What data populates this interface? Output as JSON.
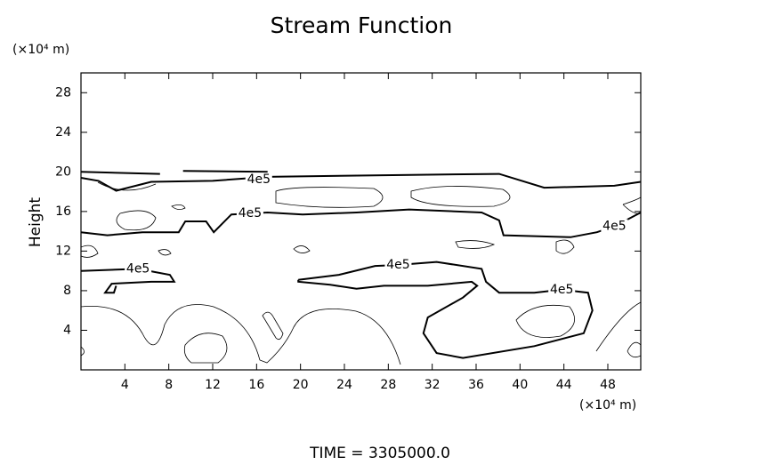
{
  "chart_data": {
    "type": "contour",
    "title": "Stream Function",
    "y_unit_label": "(×10⁴ m)",
    "y_label": "Height",
    "x_unit_label": "(×10⁴ m)",
    "time_label": "TIME = 3305000.0",
    "xlim": [
      0,
      51
    ],
    "xticks": [
      4,
      8,
      12,
      16,
      20,
      24,
      28,
      32,
      36,
      40,
      44,
      48
    ],
    "ylim": [
      0,
      30
    ],
    "yticks": [
      4,
      8,
      12,
      16,
      20,
      24,
      28
    ],
    "contours": [
      {
        "level": 400000,
        "label": "4e5",
        "color": "#000000",
        "labels_at": [
          [
            16.2,
            19.2
          ],
          [
            15.4,
            15.8
          ],
          [
            48.6,
            14.5
          ],
          [
            5.2,
            10.2
          ],
          [
            28.9,
            10.6
          ],
          [
            43.8,
            8.1
          ]
        ],
        "paths": [
          [
            [
              0,
              19.4
            ],
            [
              1.6,
              19.1
            ],
            [
              3.2,
              18.1
            ],
            [
              6.4,
              19.0
            ],
            [
              12,
              19.1
            ],
            [
              17,
              19.5
            ],
            [
              30,
              19.7
            ],
            [
              38.1,
              19.8
            ],
            [
              42.2,
              18.4
            ],
            [
              48.6,
              18.6
            ],
            [
              51,
              19.0
            ]
          ],
          [
            [
              0,
              20.0
            ],
            [
              7.2,
              19.8
            ]
          ],
          [
            [
              9.3,
              20.1
            ],
            [
              17,
              20.0
            ]
          ],
          [
            [
              0,
              13.9
            ],
            [
              2.4,
              13.6
            ],
            [
              5.6,
              13.9
            ],
            [
              8.9,
              13.9
            ],
            [
              9.5,
              15.0
            ],
            [
              11.4,
              15.0
            ],
            [
              12.1,
              13.9
            ],
            [
              13.7,
              15.7
            ],
            [
              17,
              15.9
            ],
            [
              20.2,
              15.7
            ],
            [
              25.1,
              15.9
            ],
            [
              29.9,
              16.2
            ],
            [
              36.5,
              15.9
            ],
            [
              38.1,
              15.1
            ],
            [
              38.5,
              13.6
            ],
            [
              44.6,
              13.4
            ],
            [
              47,
              13.9
            ],
            [
              48.6,
              14.5
            ],
            [
              51,
              15.9
            ]
          ],
          [
            [
              0,
              10.0
            ],
            [
              5.2,
              10.2
            ],
            [
              8.1,
              9.6
            ],
            [
              8.5,
              8.9
            ],
            [
              6.4,
              8.9
            ],
            [
              2.8,
              8.7
            ],
            [
              2.2,
              7.8
            ],
            [
              3.0,
              7.8
            ],
            [
              3.2,
              8.5
            ]
          ],
          [
            [
              19.8,
              9.1
            ],
            [
              23.5,
              9.6
            ],
            [
              26.8,
              10.5
            ],
            [
              28.9,
              10.6
            ],
            [
              32.4,
              10.9
            ],
            [
              36.5,
              10.2
            ],
            [
              36.9,
              8.9
            ],
            [
              38.1,
              7.8
            ],
            [
              41.3,
              7.8
            ],
            [
              43.8,
              8.1
            ],
            [
              46.2,
              7.8
            ],
            [
              46.6,
              6.0
            ],
            [
              45.8,
              3.7
            ],
            [
              41.3,
              2.4
            ],
            [
              34.8,
              1.2
            ],
            [
              32.4,
              1.7
            ],
            [
              31.2,
              3.7
            ],
            [
              31.6,
              5.3
            ],
            [
              34.8,
              7.3
            ],
            [
              36.1,
              8.5
            ],
            [
              35.6,
              8.9
            ],
            [
              31.6,
              8.5
            ],
            [
              27.6,
              8.5
            ],
            [
              25.1,
              8.2
            ],
            [
              22.7,
              8.6
            ],
            [
              19.8,
              8.9
            ],
            [
              19.8,
              9.1
            ]
          ]
        ]
      }
    ]
  }
}
